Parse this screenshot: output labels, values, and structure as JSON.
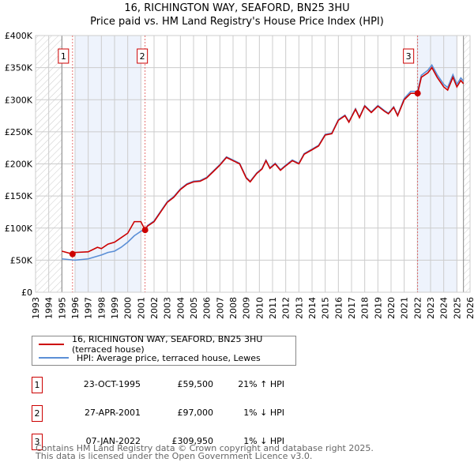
{
  "title": "16, RICHINGTON WAY, SEAFORD, BN25 3HU",
  "subtitle": "Price paid vs. HM Land Registry's House Price Index (HPI)",
  "chart_data": {
    "type": "line",
    "xlim": [
      1993,
      2026
    ],
    "ylim": [
      0,
      400000
    ],
    "yticks": [
      0,
      50000,
      100000,
      150000,
      200000,
      250000,
      300000,
      350000,
      400000
    ],
    "ytick_labels": [
      "£0",
      "£50K",
      "£100K",
      "£150K",
      "£200K",
      "£250K",
      "£300K",
      "£350K",
      "£400K"
    ],
    "xticks": [
      1993,
      1994,
      1995,
      1996,
      1997,
      1998,
      1999,
      2000,
      2001,
      2002,
      2003,
      2004,
      2005,
      2006,
      2007,
      2008,
      2009,
      2010,
      2011,
      2012,
      2013,
      2014,
      2015,
      2016,
      2017,
      2018,
      2019,
      2020,
      2021,
      2022,
      2023,
      2024,
      2025,
      2026
    ],
    "grid": true,
    "data_start": 1995.0,
    "data_end": 2025.5,
    "series": [
      {
        "name": "16, RICHINGTON WAY, SEAFORD, BN25 3HU (terraced house)",
        "color": "#cc0000",
        "points": [
          [
            1995,
            64000
          ],
          [
            1995.81,
            59500
          ],
          [
            1996,
            62000
          ],
          [
            1997,
            63000
          ],
          [
            1997.7,
            70000
          ],
          [
            1998,
            68000
          ],
          [
            1998.5,
            75000
          ],
          [
            1999,
            78000
          ],
          [
            1999.5,
            85000
          ],
          [
            2000,
            92000
          ],
          [
            2000.5,
            110000
          ],
          [
            2001,
            110000
          ],
          [
            2001.32,
            97000
          ],
          [
            2001.5,
            103000
          ],
          [
            2002,
            110000
          ],
          [
            2002.5,
            125000
          ],
          [
            2003,
            140000
          ],
          [
            2003.5,
            148000
          ],
          [
            2004,
            160000
          ],
          [
            2004.5,
            168000
          ],
          [
            2005,
            172000
          ],
          [
            2005.5,
            173000
          ],
          [
            2006,
            178000
          ],
          [
            2006.5,
            188000
          ],
          [
            2007,
            198000
          ],
          [
            2007.5,
            210000
          ],
          [
            2008,
            205000
          ],
          [
            2008.5,
            200000
          ],
          [
            2009,
            178000
          ],
          [
            2009.3,
            172000
          ],
          [
            2009.8,
            185000
          ],
          [
            2010.2,
            192000
          ],
          [
            2010.5,
            205000
          ],
          [
            2010.8,
            193000
          ],
          [
            2011.2,
            200000
          ],
          [
            2011.6,
            190000
          ],
          [
            2012,
            197000
          ],
          [
            2012.5,
            205000
          ],
          [
            2013,
            200000
          ],
          [
            2013.4,
            215000
          ],
          [
            2014,
            222000
          ],
          [
            2014.5,
            228000
          ],
          [
            2015,
            245000
          ],
          [
            2015.5,
            247000
          ],
          [
            2016,
            268000
          ],
          [
            2016.5,
            275000
          ],
          [
            2016.8,
            265000
          ],
          [
            2017.3,
            285000
          ],
          [
            2017.6,
            272000
          ],
          [
            2018,
            290000
          ],
          [
            2018.5,
            280000
          ],
          [
            2019,
            290000
          ],
          [
            2019.5,
            282000
          ],
          [
            2019.8,
            278000
          ],
          [
            2020.2,
            288000
          ],
          [
            2020.5,
            275000
          ],
          [
            2021,
            300000
          ],
          [
            2021.5,
            310000
          ],
          [
            2022.02,
            309950
          ],
          [
            2022.3,
            335000
          ],
          [
            2022.8,
            342000
          ],
          [
            2023.1,
            350000
          ],
          [
            2023.5,
            335000
          ],
          [
            2024,
            320000
          ],
          [
            2024.3,
            315000
          ],
          [
            2024.7,
            335000
          ],
          [
            2025,
            320000
          ],
          [
            2025.3,
            330000
          ],
          [
            2025.5,
            325000
          ]
        ]
      },
      {
        "name": "HPI: Average price, terraced house, Lewes",
        "color": "#5b8fd6",
        "points": [
          [
            1995,
            52000
          ],
          [
            1996,
            50000
          ],
          [
            1997,
            52000
          ],
          [
            1998,
            58000
          ],
          [
            1998.5,
            62000
          ],
          [
            1999,
            64000
          ],
          [
            1999.5,
            70000
          ],
          [
            2000,
            78000
          ],
          [
            2000.5,
            88000
          ],
          [
            2001,
            95000
          ],
          [
            2001.32,
            97500
          ],
          [
            2001.5,
            104000
          ],
          [
            2002,
            111000
          ],
          [
            2002.5,
            126000
          ],
          [
            2003,
            141000
          ],
          [
            2003.5,
            149000
          ],
          [
            2004,
            161000
          ],
          [
            2004.5,
            169000
          ],
          [
            2005,
            173000
          ],
          [
            2005.5,
            174000
          ],
          [
            2006,
            179000
          ],
          [
            2006.5,
            189000
          ],
          [
            2007,
            199000
          ],
          [
            2007.5,
            211000
          ],
          [
            2008,
            206000
          ],
          [
            2008.5,
            201000
          ],
          [
            2009,
            179000
          ],
          [
            2009.3,
            173000
          ],
          [
            2009.8,
            186000
          ],
          [
            2010.2,
            193000
          ],
          [
            2010.5,
            206000
          ],
          [
            2010.8,
            194000
          ],
          [
            2011.2,
            201000
          ],
          [
            2011.6,
            191000
          ],
          [
            2012,
            198000
          ],
          [
            2012.5,
            206000
          ],
          [
            2013,
            201000
          ],
          [
            2013.4,
            216000
          ],
          [
            2014,
            223000
          ],
          [
            2014.5,
            229000
          ],
          [
            2015,
            246000
          ],
          [
            2015.5,
            248000
          ],
          [
            2016,
            269000
          ],
          [
            2016.5,
            276000
          ],
          [
            2016.8,
            266000
          ],
          [
            2017.3,
            286000
          ],
          [
            2017.6,
            273000
          ],
          [
            2018,
            291000
          ],
          [
            2018.5,
            281000
          ],
          [
            2019,
            291000
          ],
          [
            2019.5,
            283000
          ],
          [
            2019.8,
            279000
          ],
          [
            2020.2,
            289000
          ],
          [
            2020.5,
            276000
          ],
          [
            2021,
            302000
          ],
          [
            2021.5,
            313000
          ],
          [
            2022.02,
            313000
          ],
          [
            2022.3,
            338000
          ],
          [
            2022.8,
            346000
          ],
          [
            2023.1,
            354000
          ],
          [
            2023.5,
            339000
          ],
          [
            2024,
            324000
          ],
          [
            2024.3,
            319000
          ],
          [
            2024.7,
            339000
          ],
          [
            2025,
            324000
          ],
          [
            2025.3,
            334000
          ],
          [
            2025.5,
            329000
          ]
        ]
      }
    ],
    "sales": [
      {
        "label": "1",
        "x": 1995.81,
        "price": 59500,
        "date": "23-OCT-1995",
        "price_text": "£59,500",
        "hpi_text": "21% ↑ HPI"
      },
      {
        "label": "2",
        "x": 2001.32,
        "price": 97000,
        "date": "27-APR-2001",
        "price_text": "£97,000",
        "hpi_text": "1% ↓ HPI"
      },
      {
        "label": "3",
        "x": 2022.02,
        "price": 309950,
        "date": "07-JAN-2022",
        "price_text": "£309,950",
        "hpi_text": "1% ↓ HPI"
      }
    ],
    "shaded_ranges": [
      [
        1996,
        2001
      ],
      [
        2022,
        2025
      ]
    ]
  },
  "legend": {
    "red": "16, RICHINGTON WAY, SEAFORD, BN25 3HU (terraced house)",
    "blue": "HPI: Average price, terraced house, Lewes"
  },
  "footer": {
    "line1": "Contains HM Land Registry data © Crown copyright and database right 2025.",
    "line2": "This data is licensed under the Open Government Licence v3.0."
  }
}
